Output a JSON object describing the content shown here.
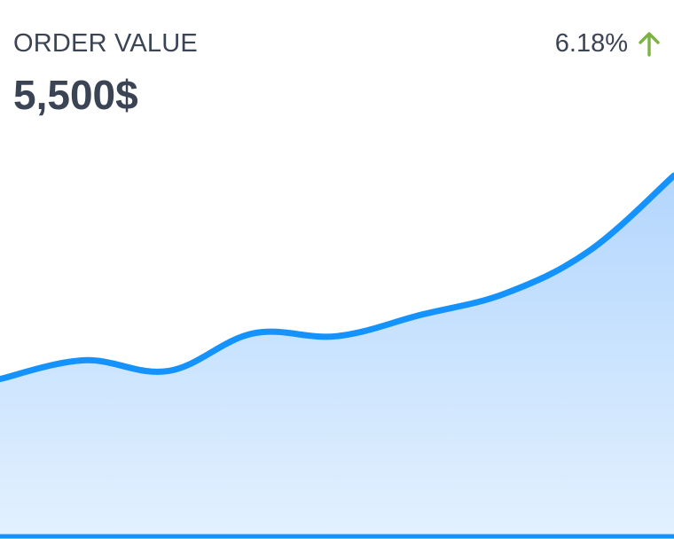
{
  "card": {
    "title": "ORDER VALUE",
    "value": "5,500$",
    "change": {
      "text": "6.18%",
      "direction": "up",
      "icon": "arrow-up-icon",
      "color": "#7cb342"
    }
  },
  "colors": {
    "line": "#1493ff",
    "area_top": "#b3d6fd",
    "area_bottom": "#e3f1ff",
    "text": "#3b4454"
  },
  "chart_data": {
    "type": "area",
    "title": "",
    "xlabel": "",
    "ylabel": "",
    "x": [
      0,
      1,
      2,
      3,
      4,
      5,
      6,
      7,
      8
    ],
    "ylim": [
      0,
      100
    ],
    "grid": false,
    "series": [
      {
        "values": [
          24,
          31,
          27,
          41,
          40,
          48,
          56,
          72,
          100
        ]
      }
    ]
  }
}
